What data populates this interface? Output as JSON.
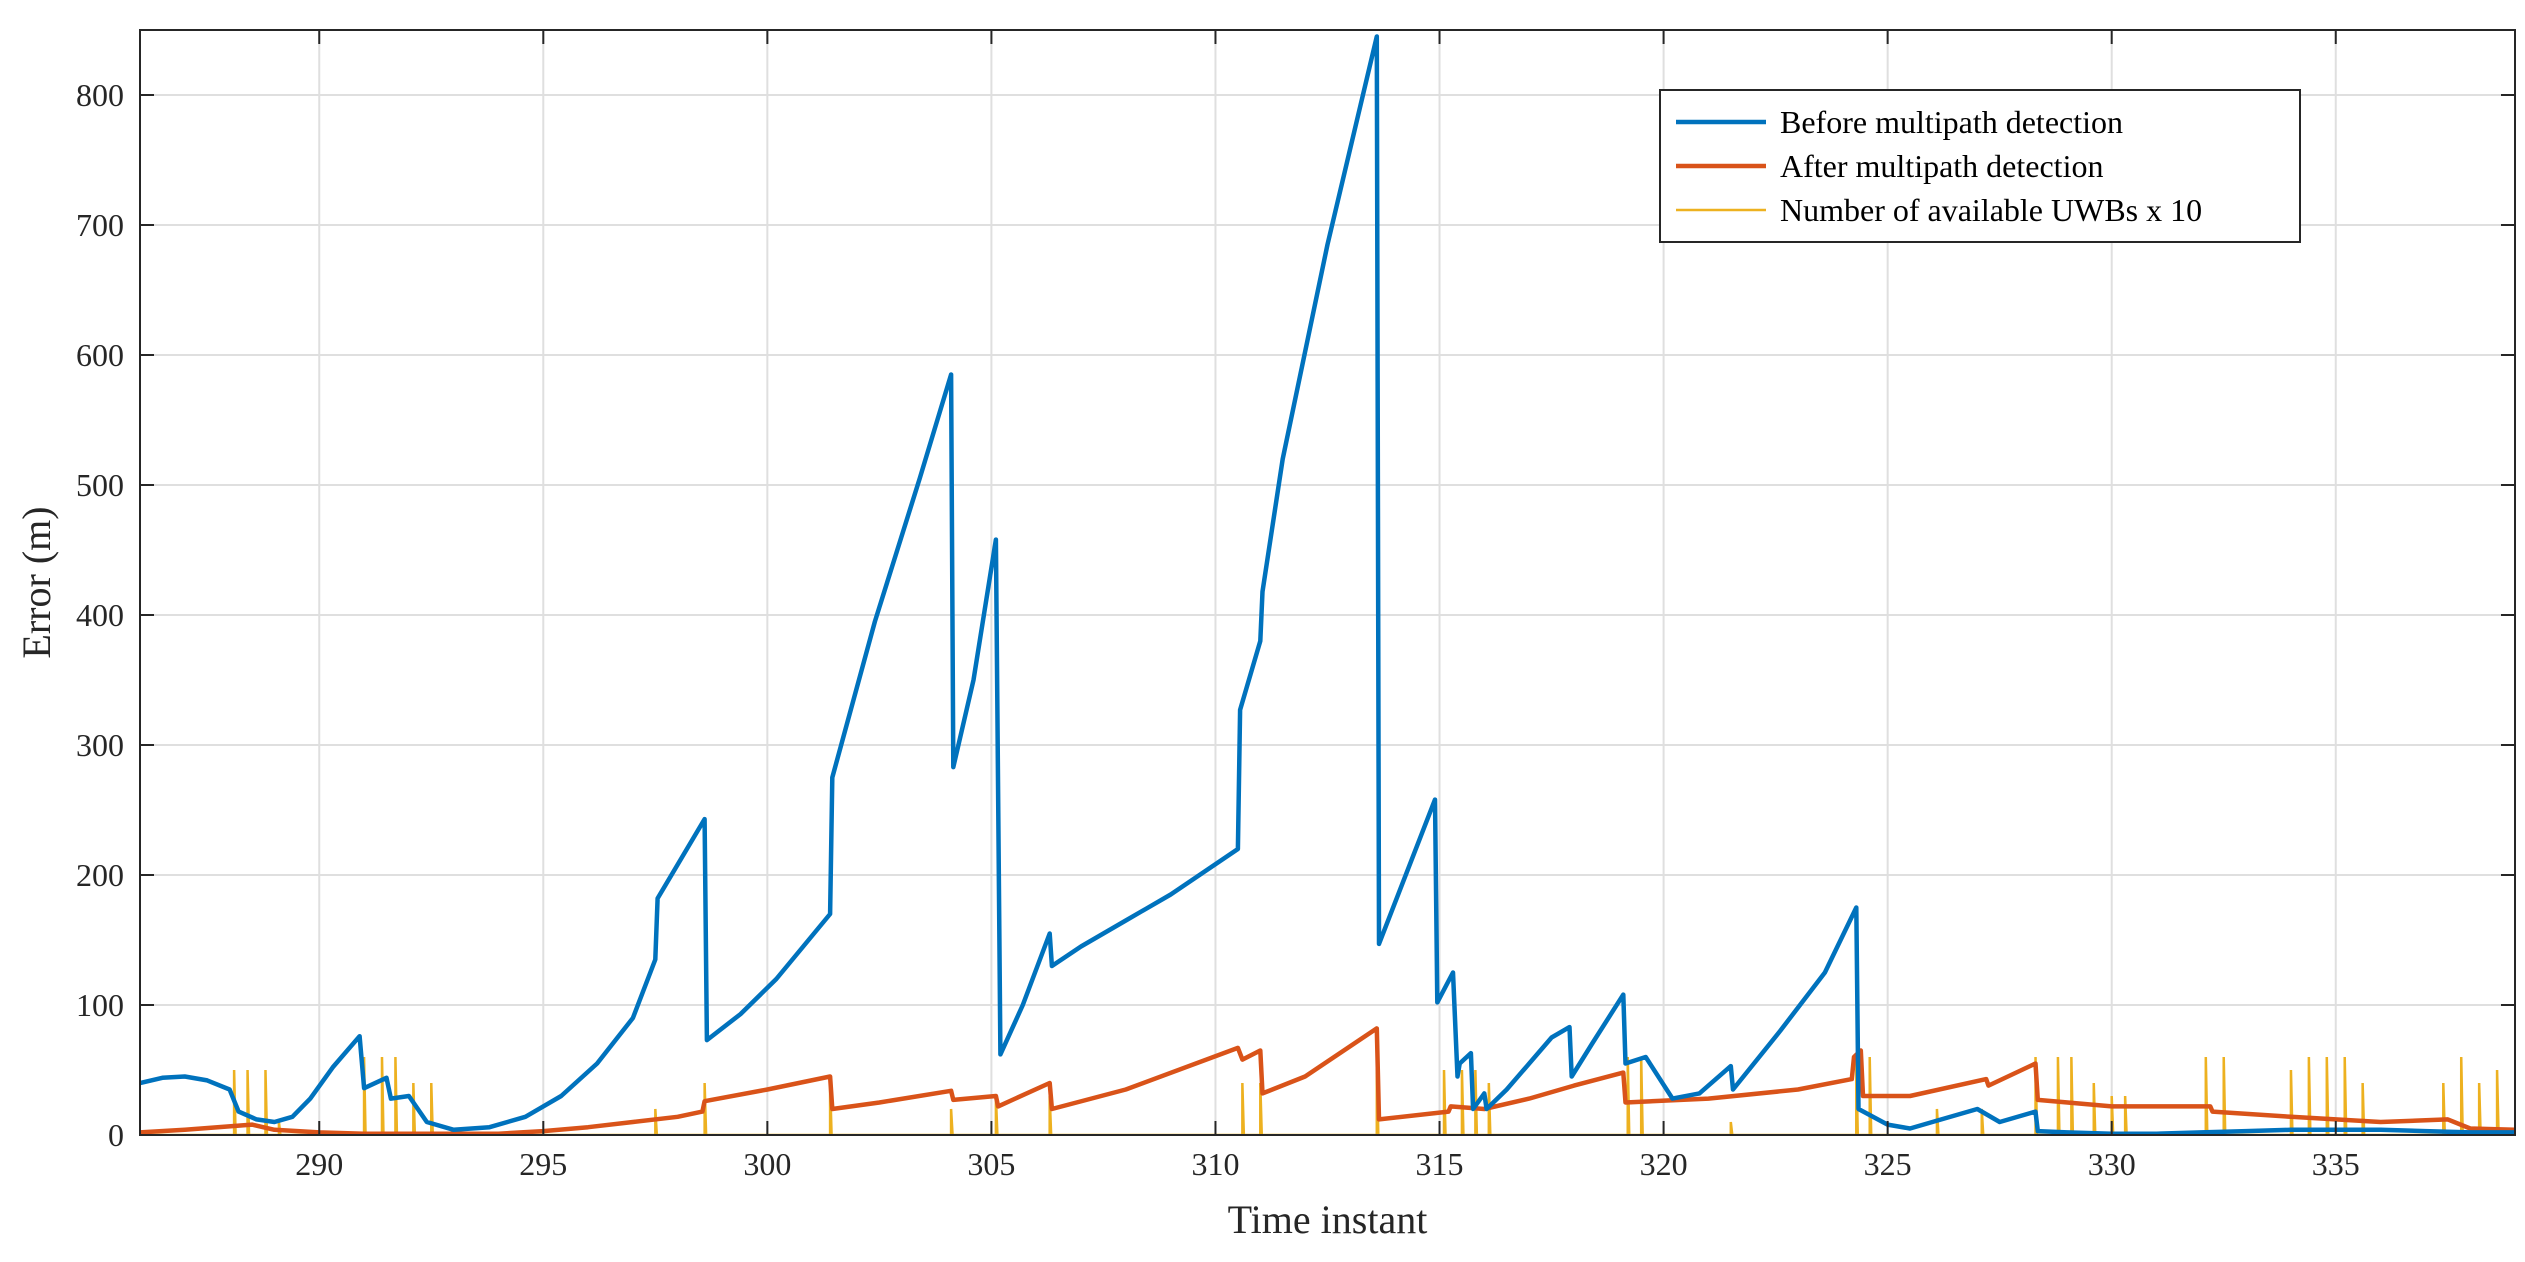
{
  "chart_data": {
    "type": "line",
    "title": "",
    "xlabel": "Time instant",
    "ylabel": "Error (m)",
    "xlim": [
      286,
      339
    ],
    "ylim": [
      0,
      850
    ],
    "xticks": [
      290,
      295,
      300,
      305,
      310,
      315,
      320,
      325,
      330,
      335
    ],
    "yticks": [
      0,
      100,
      200,
      300,
      400,
      500,
      600,
      700,
      800
    ],
    "grid": true,
    "legend_position": "top-right",
    "series": [
      {
        "name": "Before multipath detection",
        "color": "#0072BD",
        "x": [
          286,
          286.5,
          287,
          287.5,
          288,
          288.2,
          288.6,
          289,
          289.4,
          289.8,
          290.3,
          290.9,
          291,
          291.5,
          291.6,
          292,
          292.4,
          293,
          293.8,
          294.6,
          295.4,
          296.2,
          297,
          297.5,
          297.55,
          298.6,
          298.65,
          299.4,
          300.2,
          300.8,
          301.4,
          301.45,
          302.4,
          303.4,
          304.1,
          304.15,
          304.6,
          305.1,
          305.2,
          305.7,
          306.3,
          306.35,
          307,
          308,
          309,
          310.5,
          310.55,
          311,
          311.05,
          311.5,
          312.5,
          313.6,
          313.65,
          314.9,
          314.95,
          315.3,
          315.4,
          315.45,
          315.7,
          315.75,
          316,
          316.05,
          316.5,
          317,
          317.5,
          317.9,
          317.95,
          318.4,
          319.1,
          319.15,
          319.6,
          320.2,
          320.8,
          321.5,
          321.55,
          322.6,
          323.6,
          324.3,
          324.35,
          325,
          325.5,
          326.2,
          327,
          327.5,
          328.3,
          328.35,
          329,
          330,
          331,
          332,
          333,
          334,
          335,
          336,
          337,
          338,
          339
        ],
        "values": [
          40,
          44,
          45,
          42,
          35,
          18,
          12,
          10,
          14,
          28,
          52,
          76,
          36,
          44,
          28,
          30,
          10,
          4,
          6,
          14,
          30,
          55,
          90,
          135,
          182,
          243,
          73,
          93,
          120,
          145,
          170,
          275,
          395,
          505,
          585,
          283,
          350,
          458,
          62,
          100,
          155,
          130,
          145,
          165,
          185,
          220,
          327,
          380,
          418,
          520,
          685,
          845,
          147,
          258,
          102,
          125,
          45,
          55,
          63,
          20,
          32,
          20,
          35,
          55,
          75,
          83,
          45,
          70,
          108,
          55,
          60,
          28,
          32,
          53,
          35,
          80,
          125,
          175,
          20,
          8,
          5,
          12,
          20,
          10,
          18,
          3,
          2,
          1,
          1,
          2,
          3,
          4,
          4,
          4,
          3,
          2,
          2
        ]
      },
      {
        "name": "After multipath detection",
        "color": "#D95319",
        "x": [
          286,
          287,
          288.5,
          289,
          290,
          291,
          292,
          293,
          294,
          295,
          296,
          297,
          298,
          298.55,
          298.6,
          300,
          301.4,
          301.45,
          302.5,
          304.1,
          304.15,
          305.1,
          305.15,
          306.3,
          306.35,
          308,
          310.5,
          310.6,
          311,
          311.05,
          312,
          313.6,
          313.65,
          315.2,
          315.25,
          316,
          317,
          318,
          319.1,
          319.15,
          321,
          323,
          324.2,
          324.25,
          324.4,
          324.45,
          325.5,
          327.2,
          327.25,
          328.3,
          328.35,
          330,
          332.2,
          332.25,
          334,
          336,
          337.5,
          338,
          339
        ],
        "values": [
          2,
          4,
          8,
          4,
          2,
          1,
          1,
          1,
          1,
          3,
          6,
          10,
          14,
          18,
          26,
          35,
          45,
          20,
          25,
          34,
          27,
          30,
          22,
          40,
          20,
          35,
          67,
          58,
          65,
          32,
          45,
          82,
          12,
          18,
          22,
          20,
          28,
          38,
          48,
          25,
          28,
          35,
          43,
          60,
          65,
          30,
          30,
          43,
          38,
          55,
          27,
          22,
          22,
          18,
          14,
          10,
          12,
          5,
          4
        ]
      },
      {
        "name": "Number of available UWBs x 10",
        "color": "#EDB120",
        "spikes": [
          [
            288.1,
            50
          ],
          [
            288.4,
            50
          ],
          [
            288.8,
            50
          ],
          [
            289.1,
            10
          ],
          [
            291.0,
            60
          ],
          [
            291.4,
            60
          ],
          [
            291.7,
            60
          ],
          [
            292.1,
            40
          ],
          [
            292.5,
            40
          ],
          [
            297.5,
            20
          ],
          [
            298.6,
            40
          ],
          [
            301.4,
            40
          ],
          [
            304.1,
            20
          ],
          [
            305.1,
            30
          ],
          [
            306.3,
            30
          ],
          [
            310.6,
            40
          ],
          [
            311.0,
            40
          ],
          [
            313.6,
            60
          ],
          [
            315.1,
            50
          ],
          [
            315.5,
            50
          ],
          [
            315.8,
            50
          ],
          [
            316.1,
            40
          ],
          [
            319.2,
            60
          ],
          [
            319.5,
            60
          ],
          [
            321.5,
            10
          ],
          [
            324.3,
            60
          ],
          [
            324.6,
            60
          ],
          [
            326.1,
            20
          ],
          [
            327.1,
            20
          ],
          [
            328.3,
            60
          ],
          [
            328.8,
            60
          ],
          [
            329.1,
            60
          ],
          [
            329.6,
            40
          ],
          [
            330.0,
            30
          ],
          [
            330.3,
            30
          ],
          [
            332.1,
            60
          ],
          [
            332.5,
            60
          ],
          [
            334.0,
            50
          ],
          [
            334.4,
            60
          ],
          [
            334.8,
            60
          ],
          [
            335.2,
            60
          ],
          [
            335.6,
            40
          ],
          [
            337.4,
            40
          ],
          [
            337.8,
            60
          ],
          [
            338.2,
            40
          ],
          [
            338.6,
            50
          ]
        ]
      }
    ]
  }
}
